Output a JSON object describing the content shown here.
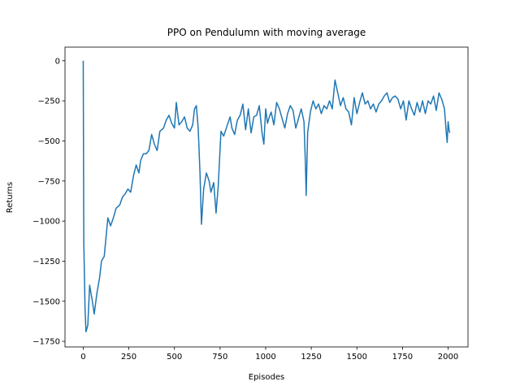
{
  "chart_data": {
    "type": "line",
    "title": "PPO on Pendulumn with moving average",
    "x_label": "Episodes",
    "y_label": "Returns",
    "xlim": [
      -100,
      2109
    ],
    "ylim": [
      -1785,
      85
    ],
    "xticks": [
      0,
      250,
      500,
      750,
      1000,
      1250,
      1500,
      1750,
      2000
    ],
    "yticks": [
      0,
      {
        "value": -250,
        "label": "−250"
      },
      {
        "value": -500,
        "label": "−500"
      },
      {
        "value": -750,
        "label": "−750"
      },
      {
        "value": -1000,
        "label": "−1000"
      },
      {
        "value": -1250,
        "label": "−1250"
      },
      {
        "value": -1500,
        "label": "−1500"
      },
      {
        "value": -1750,
        "label": "−1750"
      }
    ],
    "series": [
      {
        "color": "#1f77b4",
        "x": [
          0,
          3,
          10,
          15,
          25,
          35,
          50,
          60,
          75,
          90,
          100,
          115,
          125,
          135,
          150,
          165,
          180,
          200,
          215,
          230,
          245,
          260,
          275,
          290,
          305,
          315,
          330,
          345,
          360,
          375,
          390,
          405,
          420,
          440,
          455,
          470,
          485,
          500,
          510,
          525,
          540,
          555,
          570,
          585,
          600,
          610,
          620,
          630,
          640,
          648,
          660,
          675,
          690,
          700,
          715,
          728,
          740,
          755,
          770,
          790,
          805,
          815,
          830,
          845,
          860,
          875,
          890,
          905,
          920,
          935,
          950,
          965,
          980,
          990,
          1000,
          1010,
          1020,
          1030,
          1045,
          1060,
          1075,
          1090,
          1105,
          1120,
          1135,
          1150,
          1165,
          1180,
          1195,
          1210,
          1218,
          1222,
          1230,
          1245,
          1260,
          1275,
          1290,
          1305,
          1320,
          1335,
          1350,
          1365,
          1380,
          1395,
          1410,
          1425,
          1440,
          1455,
          1470,
          1485,
          1500,
          1515,
          1530,
          1545,
          1560,
          1575,
          1590,
          1605,
          1620,
          1635,
          1650,
          1665,
          1680,
          1695,
          1710,
          1725,
          1740,
          1755,
          1770,
          1785,
          1800,
          1815,
          1830,
          1845,
          1860,
          1875,
          1890,
          1905,
          1920,
          1935,
          1950,
          1965,
          1980,
          1990,
          1995,
          2000,
          2005,
          2009
        ],
        "values": [
          0,
          -1130,
          -1550,
          -1690,
          -1650,
          -1400,
          -1500,
          -1580,
          -1450,
          -1350,
          -1250,
          -1220,
          -1100,
          -980,
          -1030,
          -980,
          -920,
          -900,
          -850,
          -830,
          -800,
          -820,
          -720,
          -650,
          -700,
          -620,
          -580,
          -580,
          -560,
          -460,
          -520,
          -560,
          -440,
          -420,
          -370,
          -340,
          -390,
          -420,
          -260,
          -400,
          -380,
          -350,
          -420,
          -440,
          -400,
          -300,
          -280,
          -420,
          -700,
          -1020,
          -800,
          -700,
          -750,
          -820,
          -760,
          -950,
          -780,
          -440,
          -470,
          -400,
          -350,
          -420,
          -460,
          -370,
          -340,
          -270,
          -430,
          -300,
          -450,
          -350,
          -340,
          -280,
          -450,
          -520,
          -300,
          -390,
          -350,
          -320,
          -400,
          -260,
          -300,
          -360,
          -420,
          -330,
          -280,
          -310,
          -420,
          -360,
          -300,
          -380,
          -650,
          -840,
          -450,
          -320,
          -250,
          -300,
          -270,
          -330,
          -280,
          -300,
          -250,
          -300,
          -120,
          -200,
          -280,
          -230,
          -300,
          -320,
          -400,
          -230,
          -330,
          -260,
          -200,
          -270,
          -250,
          -300,
          -270,
          -320,
          -270,
          -250,
          -220,
          -200,
          -260,
          -230,
          -220,
          -240,
          -300,
          -250,
          -370,
          -250,
          -300,
          -340,
          -260,
          -320,
          -250,
          -330,
          -250,
          -270,
          -220,
          -310,
          -200,
          -240,
          -300,
          -450,
          -510,
          -380,
          -430,
          -450
        ]
      }
    ]
  }
}
